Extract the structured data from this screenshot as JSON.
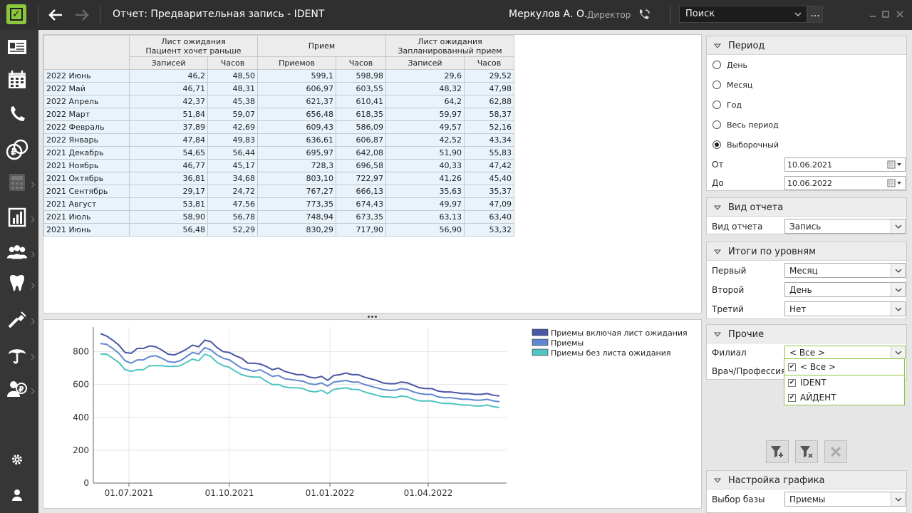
{
  "app": {
    "title": "Отчет: Предварительная запись - IDENT",
    "user": "Меркулов А. О.",
    "role": "Директор",
    "search_placeholder": "Поиск",
    "search_more": "...",
    "accent": "#8cc63f"
  },
  "sidebar": {
    "items": [
      "patient-card-icon",
      "calendar-icon",
      "phone-icon",
      "payments-icon",
      "calculator-icon",
      "reports-icon",
      "staff-icon",
      "tooth-icon",
      "tools-icon",
      "insurance-icon",
      "client-payments-icon"
    ],
    "bottom": [
      "gear-icon",
      "user-icon"
    ]
  },
  "table": {
    "groups": [
      "Лист ожидания\nПациент хочет раньше",
      "Прием",
      "Лист ожидания\nЗапланированный прием"
    ],
    "group1_l1": "Лист ожидания",
    "group1_l2": "Пациент хочет раньше",
    "group2": "Прием",
    "group3_l1": "Лист ожидания",
    "group3_l2": "Запланированный прием",
    "subheaders": [
      "Записей",
      "Часов",
      "Приемов",
      "Часов",
      "Записей",
      "Часов"
    ],
    "rows": [
      [
        "2022 Июнь",
        "46,2",
        "48,50",
        "599,1",
        "598,98",
        "29,6",
        "29,52"
      ],
      [
        "2022 Май",
        "46,71",
        "48,31",
        "606,97",
        "603,55",
        "48,32",
        "47,98"
      ],
      [
        "2022 Апрель",
        "42,37",
        "45,38",
        "621,37",
        "610,41",
        "64,2",
        "62,88"
      ],
      [
        "2022 Март",
        "51,84",
        "59,07",
        "656,48",
        "618,35",
        "59,97",
        "58,37"
      ],
      [
        "2022 Февраль",
        "37,89",
        "42,69",
        "609,43",
        "586,09",
        "49,57",
        "52,16"
      ],
      [
        "2022 Январь",
        "47,84",
        "49,83",
        "636,61",
        "606,87",
        "42,52",
        "43,34"
      ],
      [
        "2021 Декабрь",
        "54,65",
        "56,44",
        "695,97",
        "642,08",
        "51,90",
        "55,83"
      ],
      [
        "2021 Ноябрь",
        "46,77",
        "45,17",
        "728,3",
        "696,58",
        "40,33",
        "47,42"
      ],
      [
        "2021 Октябрь",
        "36,81",
        "34,68",
        "803,10",
        "722,97",
        "41,26",
        "45,40"
      ],
      [
        "2021 Сентябрь",
        "29,17",
        "24,72",
        "767,27",
        "666,13",
        "35,63",
        "35,37"
      ],
      [
        "2021 Август",
        "53,81",
        "47,56",
        "773,35",
        "674,43",
        "49,97",
        "47,09"
      ],
      [
        "2021 Июль",
        "58,90",
        "56,78",
        "748,94",
        "673,35",
        "63,13",
        "63,40"
      ],
      [
        "2021 Июнь",
        "56,48",
        "52,29",
        "830,29",
        "717,90",
        "56,90",
        "53,32"
      ]
    ]
  },
  "chart_data": {
    "type": "line",
    "x_ticks": [
      "01.07.2021",
      "01.10.2021",
      "01.01.2022",
      "01.04.2022"
    ],
    "y_ticks": [
      "0",
      "200",
      "400",
      "600",
      "800"
    ],
    "ylim": [
      0,
      950
    ],
    "grid": true,
    "legend_position": "top-right",
    "series": [
      {
        "name": "Приемы включая лист ожидания",
        "color": "#4a57a6",
        "values": [
          910,
          895,
          870,
          840,
          795,
          790,
          820,
          820,
          835,
          830,
          810,
          785,
          780,
          795,
          815,
          840,
          830,
          870,
          860,
          825,
          800,
          795,
          775,
          760,
          730,
          730,
          725,
          710,
          690,
          700,
          680,
          670,
          660,
          660,
          645,
          640,
          650,
          625,
          655,
          660,
          670,
          660,
          660,
          645,
          635,
          625,
          610,
          605,
          605,
          615,
          610,
          595,
          580,
          575,
          575,
          560,
          555,
          555,
          550,
          545,
          545,
          540,
          540,
          545,
          535,
          530
        ]
      },
      {
        "name": "Приемы",
        "color": "#6087d1",
        "values": [
          850,
          845,
          820,
          790,
          745,
          730,
          750,
          750,
          770,
          775,
          760,
          740,
          735,
          745,
          770,
          795,
          785,
          825,
          810,
          780,
          760,
          750,
          725,
          700,
          690,
          680,
          690,
          670,
          650,
          655,
          635,
          630,
          625,
          620,
          605,
          600,
          610,
          590,
          615,
          620,
          625,
          615,
          615,
          600,
          590,
          580,
          570,
          565,
          565,
          575,
          570,
          555,
          545,
          540,
          540,
          525,
          520,
          520,
          515,
          510,
          510,
          505,
          505,
          510,
          500,
          495
        ]
      },
      {
        "name": "Приемы без листа ожидания",
        "color": "#4fc4c0",
        "values": [
          785,
          785,
          760,
          735,
          690,
          680,
          690,
          690,
          715,
          715,
          715,
          710,
          710,
          715,
          735,
          755,
          745,
          785,
          770,
          735,
          715,
          705,
          680,
          660,
          650,
          645,
          645,
          620,
          600,
          600,
          585,
          580,
          580,
          575,
          560,
          555,
          565,
          545,
          570,
          575,
          580,
          570,
          570,
          555,
          545,
          535,
          525,
          525,
          520,
          530,
          525,
          510,
          500,
          500,
          500,
          490,
          485,
          485,
          480,
          475,
          475,
          470,
          470,
          475,
          465,
          460
        ]
      }
    ]
  },
  "right": {
    "period": {
      "title": "Период",
      "options": [
        "День",
        "Месяц",
        "Год",
        "Весь период",
        "Выборочный"
      ],
      "selected": "Выборочный",
      "from_label": "От",
      "from": "10.06.2021",
      "to_label": "До",
      "to": "10.06.2022"
    },
    "report_type": {
      "title": "Вид отчета",
      "label": "Вид отчета",
      "value": "Запись"
    },
    "levels": {
      "title": "Итоги по уровням",
      "first_label": "Первый",
      "first": "Месяц",
      "second_label": "Второй",
      "second": "День",
      "third_label": "Третий",
      "third": "Нет"
    },
    "other": {
      "title": "Прочие",
      "branch_label": "Филиал",
      "branch": "< Все >",
      "doctor_label": "Врач/Профессия",
      "dropdown": [
        "< Все >",
        "IDENT",
        "АЙДЕНТ"
      ]
    },
    "chart_settings": {
      "title": "Настройка графика",
      "base_label": "Выбор базы",
      "base": "Приемы"
    }
  }
}
